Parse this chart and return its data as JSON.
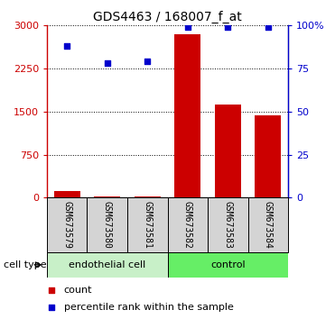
{
  "title": "GDS4463 / 168007_f_at",
  "samples": [
    "GSM673579",
    "GSM673580",
    "GSM673581",
    "GSM673582",
    "GSM673583",
    "GSM673584"
  ],
  "counts": [
    120,
    30,
    20,
    2850,
    1620,
    1430
  ],
  "percentile_ranks": [
    88,
    78,
    79,
    99,
    99,
    99
  ],
  "bar_color": "#CC0000",
  "scatter_color": "#0000CC",
  "ylim_left": [
    0,
    3000
  ],
  "ylim_right": [
    0,
    100
  ],
  "yticks_left": [
    0,
    750,
    1500,
    2250,
    3000
  ],
  "yticks_right": [
    0,
    25,
    50,
    75,
    100
  ],
  "ytick_labels_left": [
    "0",
    "750",
    "1500",
    "2250",
    "3000"
  ],
  "ytick_labels_right": [
    "0",
    "25",
    "50",
    "75",
    "100%"
  ],
  "left_axis_color": "#CC0000",
  "right_axis_color": "#0000CC",
  "endothelial_bg": "#c8f0c8",
  "control_bg": "#66ee66",
  "sample_box_bg": "#d4d4d4"
}
